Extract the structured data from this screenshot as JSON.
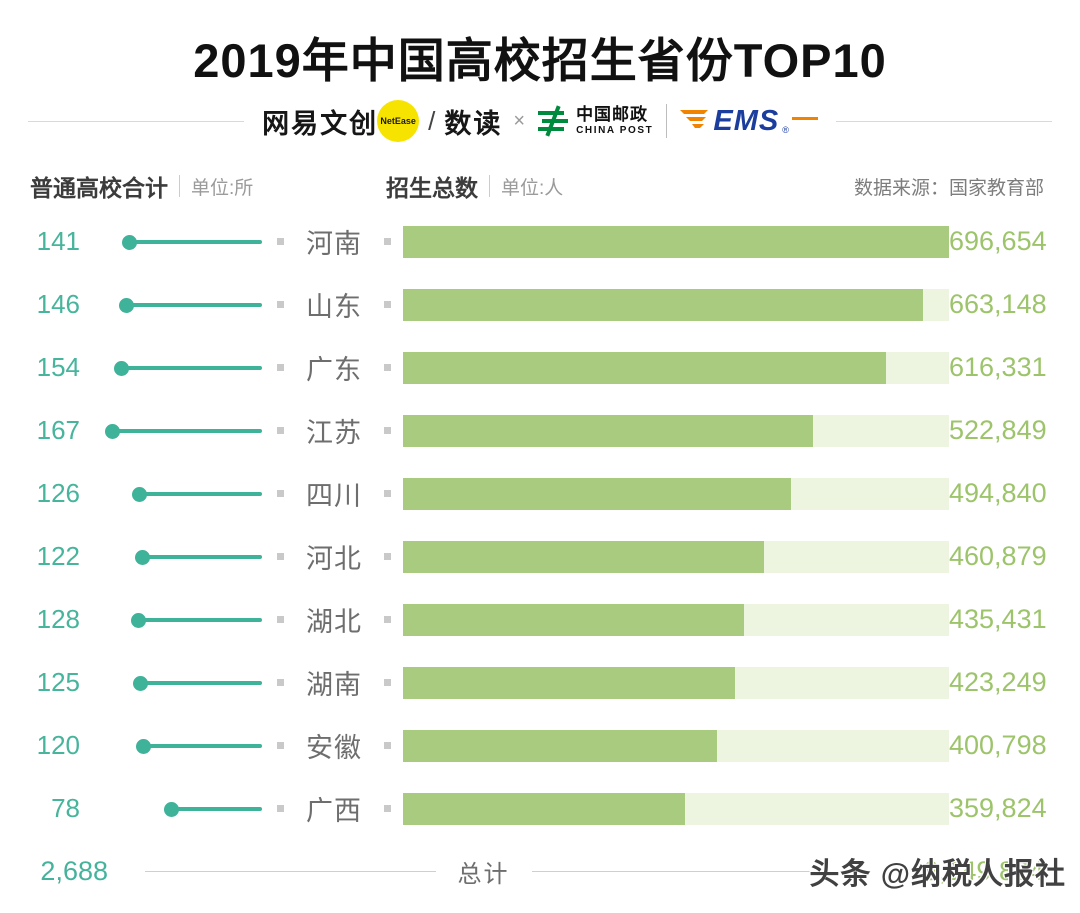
{
  "title": "2019年中国高校招生省份TOP10",
  "logos": {
    "netease_text": "网易文创",
    "netease_badge": "NetEase",
    "slash": "/",
    "shudu": "数读",
    "times": "×",
    "chinapost_cn": "中国邮政",
    "chinapost_en": "CHINA POST",
    "ems": "EMS",
    "ems_reg": "®"
  },
  "header": {
    "left_title": "普通高校合计",
    "left_unit": "单位:所",
    "right_title": "招生总数",
    "right_unit": "单位:人",
    "source": "数据来源：国家教育部"
  },
  "chart_data": {
    "type": "bar",
    "title": "2019年中国高校招生省份TOP10",
    "source": "数据来源：国家教育部",
    "categories": [
      "河南",
      "山东",
      "广东",
      "江苏",
      "四川",
      "河北",
      "湖北",
      "湖南",
      "安徽",
      "广西"
    ],
    "series": [
      {
        "name": "普通高校合计(单位:所)",
        "values": [
          141,
          146,
          154,
          167,
          126,
          122,
          128,
          125,
          120,
          78
        ]
      },
      {
        "name": "招生总数(单位:人)",
        "values": [
          696654,
          663148,
          616331,
          522849,
          494840,
          460879,
          435431,
          423249,
          400798,
          359824
        ]
      }
    ],
    "max_enrollment": 696654,
    "legend_position": "top",
    "grid": false,
    "rows": [
      {
        "province": "河南",
        "schools": 141,
        "enrollment": 696654,
        "enrollment_label": "696,654"
      },
      {
        "province": "山东",
        "schools": 146,
        "enrollment": 663148,
        "enrollment_label": "663,148"
      },
      {
        "province": "广东",
        "schools": 154,
        "enrollment": 616331,
        "enrollment_label": "616,331"
      },
      {
        "province": "江苏",
        "schools": 167,
        "enrollment": 522849,
        "enrollment_label": "522,849"
      },
      {
        "province": "四川",
        "schools": 126,
        "enrollment": 494840,
        "enrollment_label": "494,840"
      },
      {
        "province": "河北",
        "schools": 122,
        "enrollment": 460879,
        "enrollment_label": "460,879"
      },
      {
        "province": "湖北",
        "schools": 128,
        "enrollment": 435431,
        "enrollment_label": "435,431"
      },
      {
        "province": "湖南",
        "schools": 125,
        "enrollment": 423249,
        "enrollment_label": "423,249"
      },
      {
        "province": "安徽",
        "schools": 120,
        "enrollment": 400798,
        "enrollment_label": "400,798"
      },
      {
        "province": "广西",
        "schools": 78,
        "enrollment": 359824,
        "enrollment_label": "359,824"
      }
    ],
    "total": {
      "schools_label": "2,688",
      "label": "总计",
      "enrollment_label": "9,149,824"
    }
  },
  "watermark": "头条 @纳税人报社",
  "colors": {
    "teal": "#3fb29a",
    "bar_fill": "#a9cb80",
    "bar_track": "#edf5e1",
    "value_green": "#9dc46b",
    "label_gray": "#6e6e6e",
    "badge_yellow": "#f6e400",
    "chinapost_green": "#008a3e",
    "ems_blue": "#1b3e9e",
    "ems_orange": "#f08300"
  }
}
